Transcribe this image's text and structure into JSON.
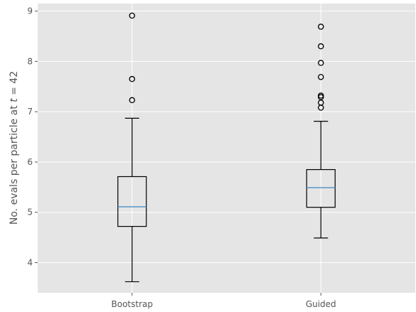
{
  "chart_data": {
    "type": "boxplot",
    "title": "",
    "xlabel": "",
    "ylabel_prefix": "No. evals per particle at ",
    "ylabel_var": "t",
    "ylabel_suffix": " = 42",
    "ylim": [
      3.4,
      9.15
    ],
    "yticks": [
      4,
      5,
      6,
      7,
      8,
      9
    ],
    "categories": [
      "Bootstrap",
      "Guided"
    ],
    "boxes": [
      {
        "label": "Bootstrap",
        "whisker_low": 3.62,
        "q1": 4.72,
        "median": 5.11,
        "q3": 5.71,
        "whisker_high": 6.87,
        "outliers": [
          7.23,
          7.65,
          8.91
        ]
      },
      {
        "label": "Guided",
        "whisker_low": 4.49,
        "q1": 5.1,
        "median": 5.49,
        "q3": 5.85,
        "whisker_high": 6.81,
        "outliers": [
          7.08,
          7.18,
          7.29,
          7.32,
          7.69,
          7.97,
          8.3,
          8.69
        ]
      }
    ],
    "grid": true,
    "colors": {
      "background": "#E5E5E5",
      "grid": "#FFFFFF",
      "median": "#4C8FC0",
      "box": "#000000",
      "tick_label": "#555555"
    }
  }
}
